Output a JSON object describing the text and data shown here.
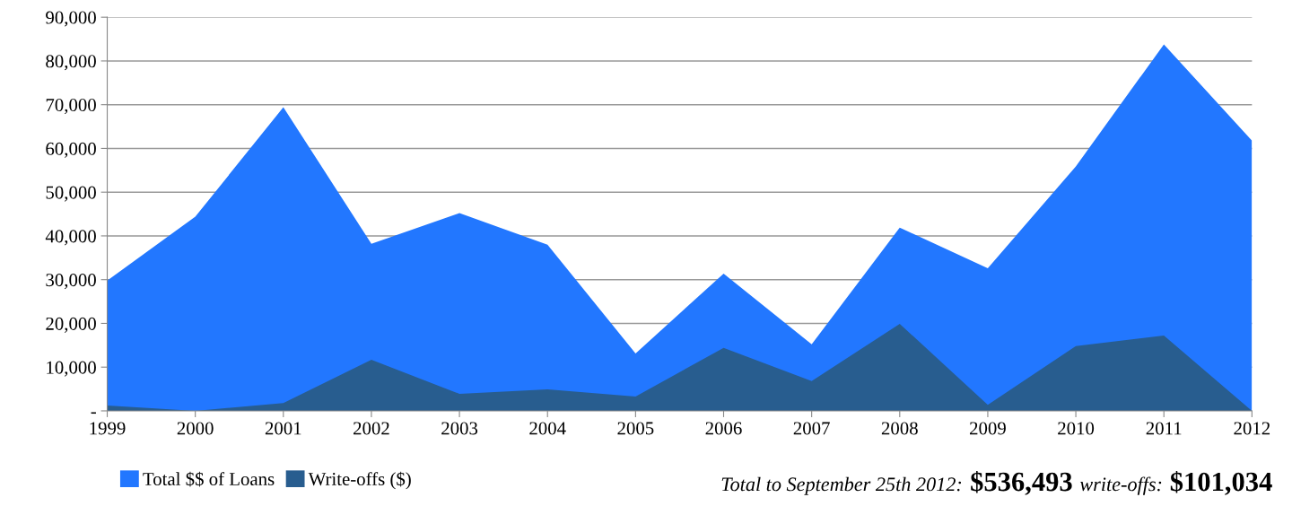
{
  "chart_data": {
    "type": "area",
    "categories": [
      "1999",
      "2000",
      "2001",
      "2002",
      "2003",
      "2004",
      "2005",
      "2006",
      "2007",
      "2008",
      "2009",
      "2010",
      "2011",
      "2012"
    ],
    "series": [
      {
        "name": "Total $$ of Loans",
        "color": "#2277ff",
        "values": [
          29800,
          44400,
          69400,
          38200,
          45200,
          38000,
          13100,
          31400,
          15200,
          41900,
          32600,
          55900,
          83800,
          61800
        ]
      },
      {
        "name": "Write-offs ($)",
        "color": "#285d8f",
        "values": [
          1200,
          0,
          1800,
          11700,
          3900,
          4900,
          3300,
          14400,
          6800,
          19900,
          1400,
          14800,
          17200,
          0
        ]
      }
    ],
    "ylim": [
      0,
      90000
    ],
    "yticks": [
      {
        "value": 0,
        "label": "-"
      },
      {
        "value": 10000,
        "label": "10,000"
      },
      {
        "value": 20000,
        "label": "20,000"
      },
      {
        "value": 30000,
        "label": "30,000"
      },
      {
        "value": 40000,
        "label": "40,000"
      },
      {
        "value": 50000,
        "label": "50,000"
      },
      {
        "value": 60000,
        "label": "60,000"
      },
      {
        "value": 70000,
        "label": "70,000"
      },
      {
        "value": 80000,
        "label": "80,000"
      },
      {
        "value": 90000,
        "label": "90,000"
      }
    ],
    "grid": "y",
    "legend": "bottom left",
    "annotations": [
      "Total to September 25th 2012:",
      "$536,493",
      "write-offs:",
      "$101,034"
    ]
  }
}
